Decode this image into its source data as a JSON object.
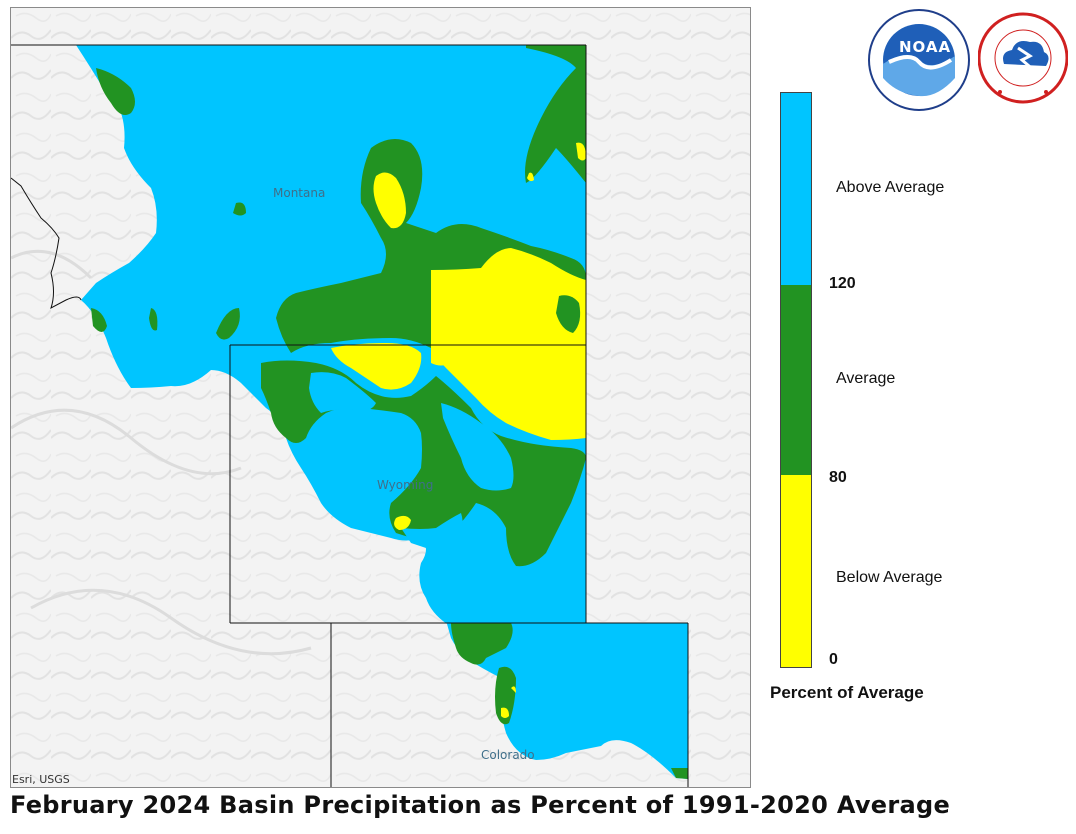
{
  "title": "February 2024 Basin Precipitation as Percent of 1991-2020 Average",
  "attribution": "Esri, USGS",
  "state_labels": {
    "montana": "Montana",
    "wyoming": "Wyoming",
    "colorado": "Colorado"
  },
  "legend": {
    "title": "Percent of Average",
    "categories": [
      {
        "label": "Above Average",
        "color": "#00C5FF"
      },
      {
        "label": "Average",
        "color": "#229322"
      },
      {
        "label": "Below Average",
        "color": "#FFFF00"
      }
    ],
    "ticks": [
      "120",
      "80",
      "0"
    ]
  },
  "logos": {
    "noaa": "NOAA"
  },
  "colors": {
    "above": "#00C5FF",
    "average": "#229322",
    "below": "#FFFF00",
    "border": "#111111",
    "terrain": "#f4f4f4"
  }
}
